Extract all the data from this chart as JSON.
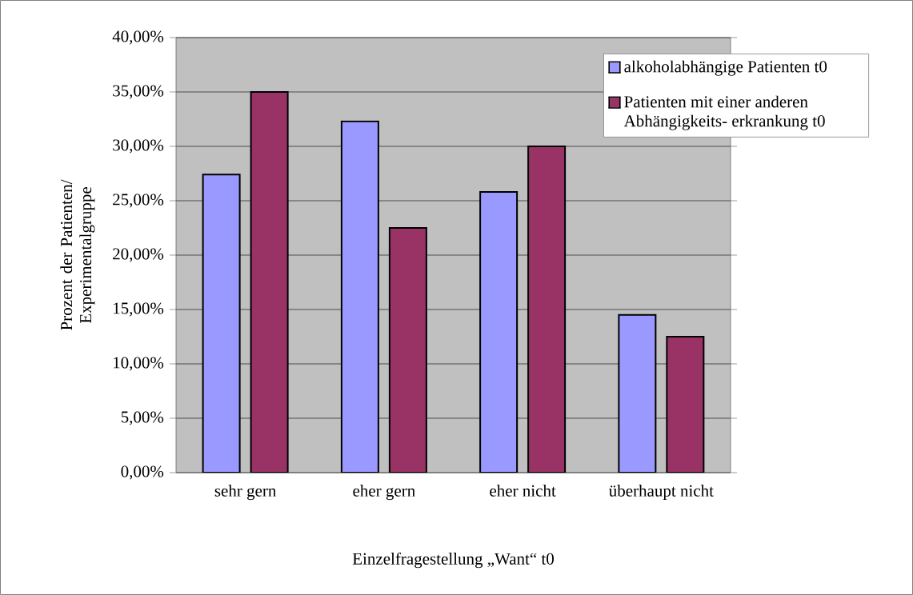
{
  "chart_data": {
    "type": "bar",
    "categories": [
      "sehr gern",
      "eher gern",
      "eher nicht",
      "überhaupt nicht"
    ],
    "series": [
      {
        "name": "alkoholabhängige Patienten t0",
        "color": "#9999ff",
        "values": [
          27.4,
          32.3,
          25.8,
          14.5
        ]
      },
      {
        "name": "Patienten mit einer anderen Abhängigkeits- erkrankung t0",
        "color": "#993366",
        "values": [
          35.0,
          22.5,
          30.0,
          12.5
        ]
      }
    ],
    "xlabel": "Einzelfragestellung „Want“ t0",
    "ylabel": "Prozent der Patienten/ Experimentalgruppe",
    "ylim": [
      0,
      40
    ],
    "yticks": [
      {
        "value": 0,
        "label": "0,00%"
      },
      {
        "value": 5,
        "label": "5,00%"
      },
      {
        "value": 10,
        "label": "10,00%"
      },
      {
        "value": 15,
        "label": "15,00%"
      },
      {
        "value": 20,
        "label": "20,00%"
      },
      {
        "value": 25,
        "label": "25,00%"
      },
      {
        "value": 30,
        "label": "30,00%"
      },
      {
        "value": 35,
        "label": "35,00%"
      },
      {
        "value": 40,
        "label": "40,00%"
      }
    ],
    "grid": "y",
    "legend": "top right"
  }
}
